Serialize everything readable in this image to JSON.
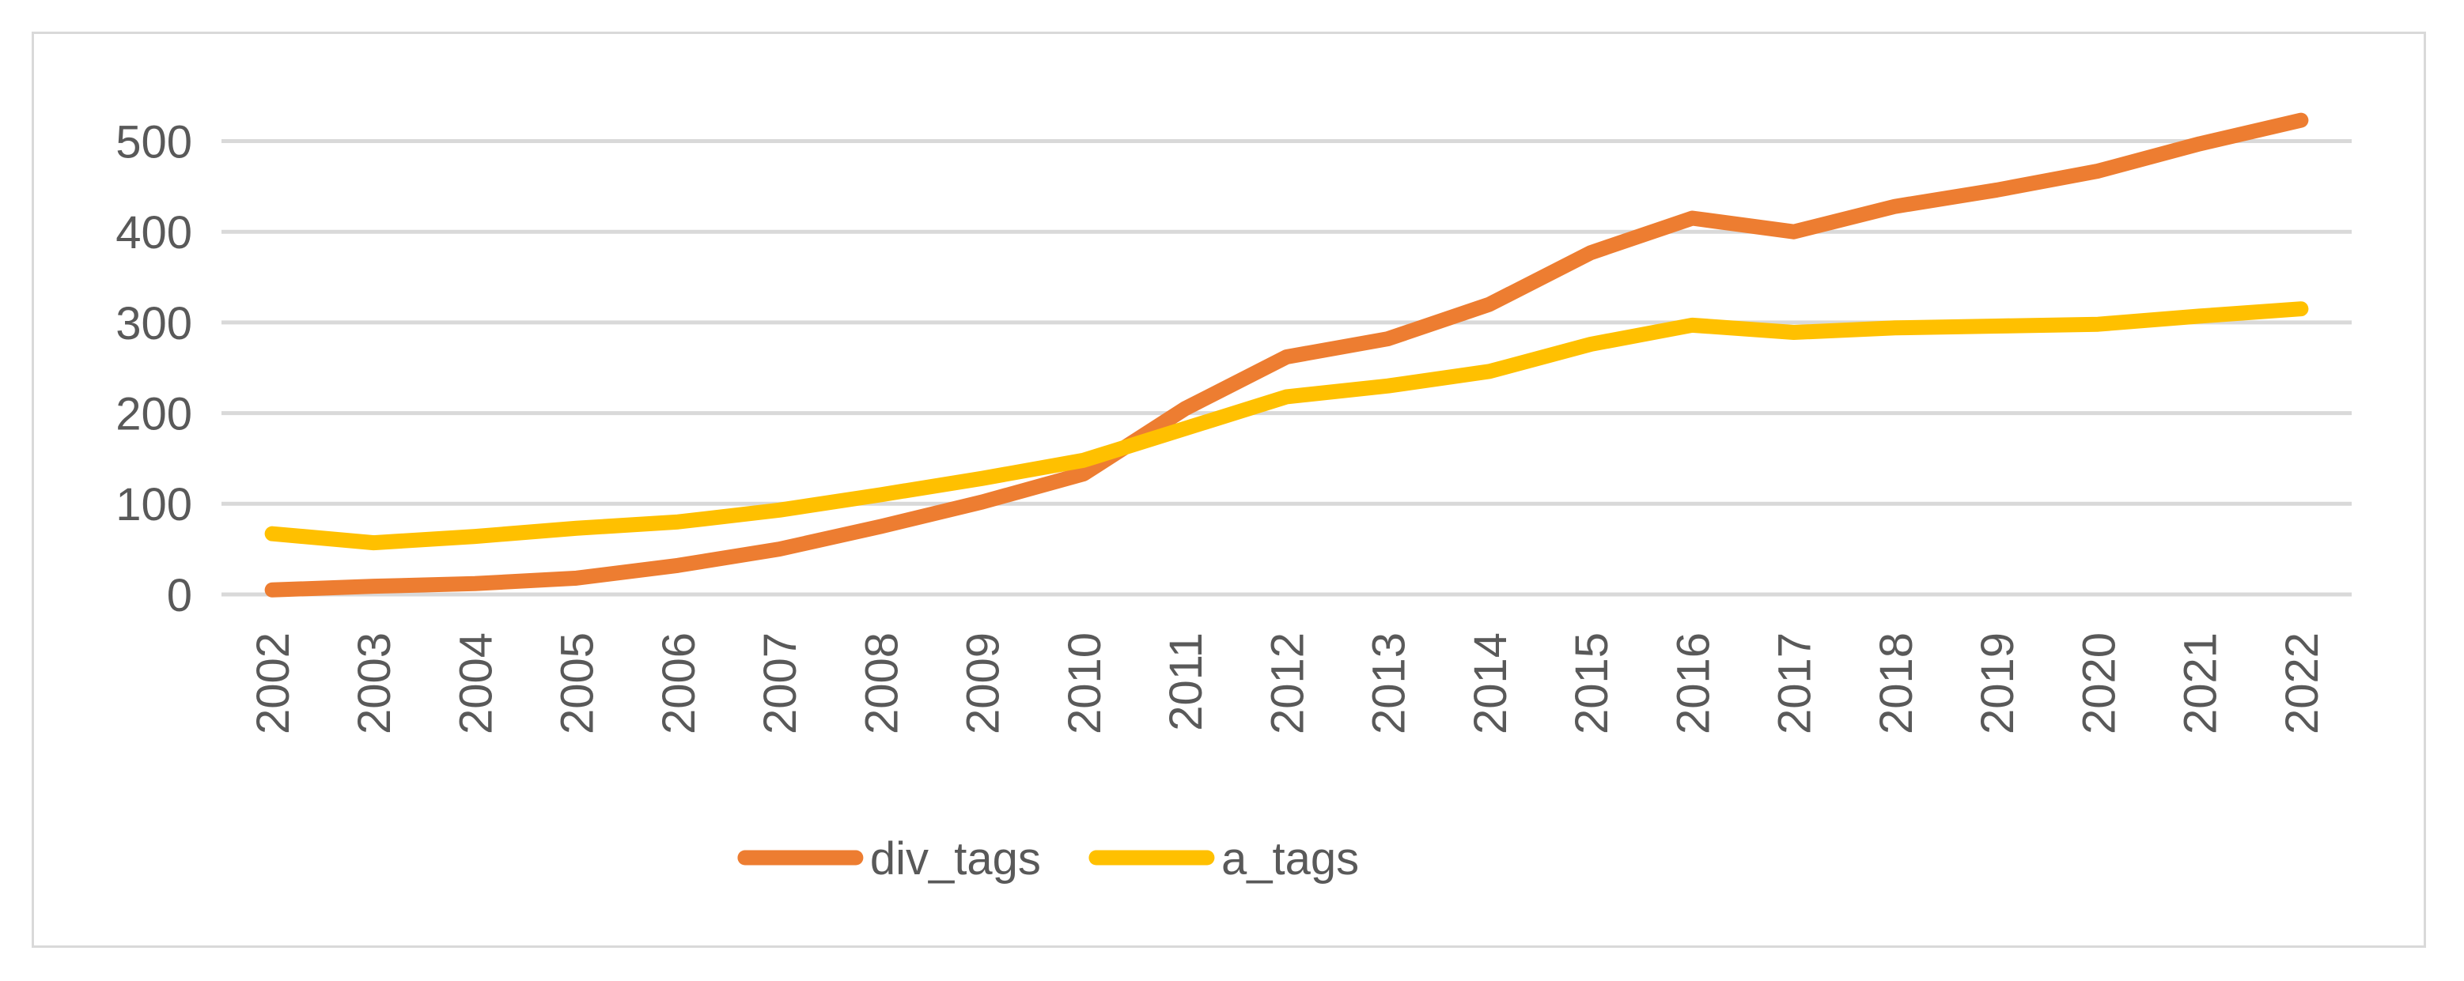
{
  "chart": {
    "background_color": "#FFFFFF",
    "frame_border_color": "#D9D9D9",
    "gridline_color": "#D9D9D9",
    "axis_label_color": "#595959",
    "series_colors": {
      "div_tags": "#ED7D31",
      "a_tags": "#FFC000"
    }
  },
  "legend": {
    "items": [
      {
        "label": "div_tags",
        "color": "#ED7D31",
        "swatch": "line-swatch"
      },
      {
        "label": "a_tags",
        "color": "#FFC000",
        "swatch": "line-swatch"
      }
    ]
  },
  "chart_data": {
    "type": "line",
    "title": "",
    "xlabel": "",
    "ylabel": "",
    "categories": [
      "2002",
      "2003",
      "2004",
      "2005",
      "2006",
      "2007",
      "2008",
      "2009",
      "2010",
      "2011",
      "2012",
      "2013",
      "2014",
      "2015",
      "2016",
      "2017",
      "2018",
      "2019",
      "2020",
      "2021",
      "2022"
    ],
    "series": [
      {
        "name": "div_tags",
        "color": "#ED7D31",
        "values": [
          5,
          9,
          12,
          18,
          32,
          50,
          75,
          102,
          133,
          205,
          262,
          282,
          320,
          377,
          415,
          400,
          428,
          446,
          467,
          497,
          523
        ]
      },
      {
        "name": "a_tags",
        "color": "#FFC000",
        "values": [
          67,
          57,
          64,
          73,
          80,
          93,
          110,
          128,
          148,
          183,
          218,
          230,
          246,
          276,
          297,
          289,
          294,
          296,
          298,
          307,
          315
        ]
      }
    ],
    "ylim": [
      0,
      500
    ],
    "yticks": [
      0,
      100,
      200,
      300,
      400,
      500
    ],
    "grid": true,
    "x_tick_rotation": -90,
    "legend_position": "bottom-center"
  }
}
